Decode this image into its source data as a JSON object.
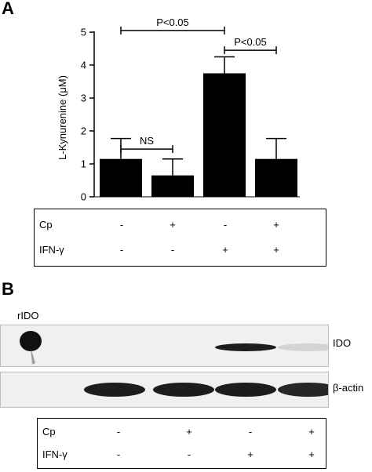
{
  "panel_a": {
    "letter": "A",
    "conditions": {
      "rows": [
        {
          "label": "Cp",
          "values": [
            "-",
            "+",
            "-",
            "+"
          ]
        },
        {
          "label": "IFN-γ",
          "values": [
            "-",
            "-",
            "+",
            "+"
          ]
        }
      ]
    }
  },
  "panel_b": {
    "letter": "B",
    "rido_label": "rIDO",
    "lanes": [
      {
        "name": "IDO",
        "rido_band": true,
        "intensities": [
          0,
          0,
          0.95,
          0.12
        ]
      },
      {
        "name": "β-actin",
        "rido_band": false,
        "intensities": [
          0.95,
          0.95,
          0.95,
          0.9
        ]
      }
    ],
    "conditions": {
      "rows": [
        {
          "label": "Cp",
          "values": [
            "-",
            "+",
            "-",
            "+"
          ]
        },
        {
          "label": "IFN-γ",
          "values": [
            "-",
            "-",
            "+",
            "+"
          ]
        }
      ]
    }
  },
  "chart_data": {
    "type": "bar",
    "title": "",
    "xlabel": "",
    "ylabel": "L-Kynurenine (μM)",
    "ylim": [
      0,
      5
    ],
    "yticks": [
      "0",
      "1",
      "2",
      "3",
      "4",
      "5"
    ],
    "categories": [
      "",
      "",
      "",
      ""
    ],
    "values": [
      1.15,
      0.65,
      3.75,
      1.15
    ],
    "errors": [
      0.62,
      0.5,
      0.5,
      0.62
    ],
    "bar_color": "#000000",
    "annotations": [
      {
        "text": "NS",
        "from": 0,
        "to": 1,
        "y": 1.45
      },
      {
        "text": "P<0.05",
        "from": 0,
        "to": 2,
        "y": 5.05
      },
      {
        "text": "P<0.05",
        "from": 2,
        "to": 3,
        "y": 4.45
      }
    ]
  }
}
